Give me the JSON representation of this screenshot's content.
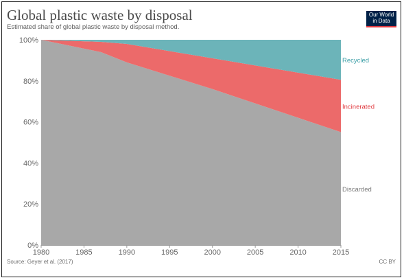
{
  "header": {
    "title": "Global plastic waste by disposal",
    "subtitle": "Estimated share of global plastic waste by disposal method.",
    "logo_line1": "Our World",
    "logo_line2": "in Data"
  },
  "footer": {
    "source": "Source: Geyer et al. (2017)",
    "license": "CC BY"
  },
  "colors": {
    "discarded": "#a8a8a8",
    "incinerated": "#ec6a6a",
    "recycled": "#6cb4b9",
    "recycled_label": "#3b9ea6",
    "incinerated_label": "#e0393e",
    "discarded_label": "#7a7a7a",
    "logo_bg": "#002147",
    "logo_accent": "#e0393e"
  },
  "chart_data": {
    "type": "area",
    "stacked": true,
    "x": [
      1980,
      1987,
      1990,
      2000,
      2015
    ],
    "series": [
      {
        "name": "Discarded",
        "values": [
          100,
          94,
          89,
          76,
          55
        ]
      },
      {
        "name": "Incinerated",
        "values": [
          0,
          5,
          9,
          15,
          25.5
        ]
      },
      {
        "name": "Recycled",
        "values": [
          0,
          1,
          2,
          9,
          19.5
        ]
      }
    ],
    "xticks": [
      "1980",
      "1985",
      "1990",
      "1995",
      "2000",
      "2005",
      "2010",
      "2015"
    ],
    "yticks": [
      "0%",
      "20%",
      "40%",
      "60%",
      "80%",
      "100%"
    ],
    "xlim": [
      1980,
      2015
    ],
    "ylim": [
      0,
      100
    ],
    "grid": "horizontal dotted",
    "legend": "series labels at right end"
  }
}
